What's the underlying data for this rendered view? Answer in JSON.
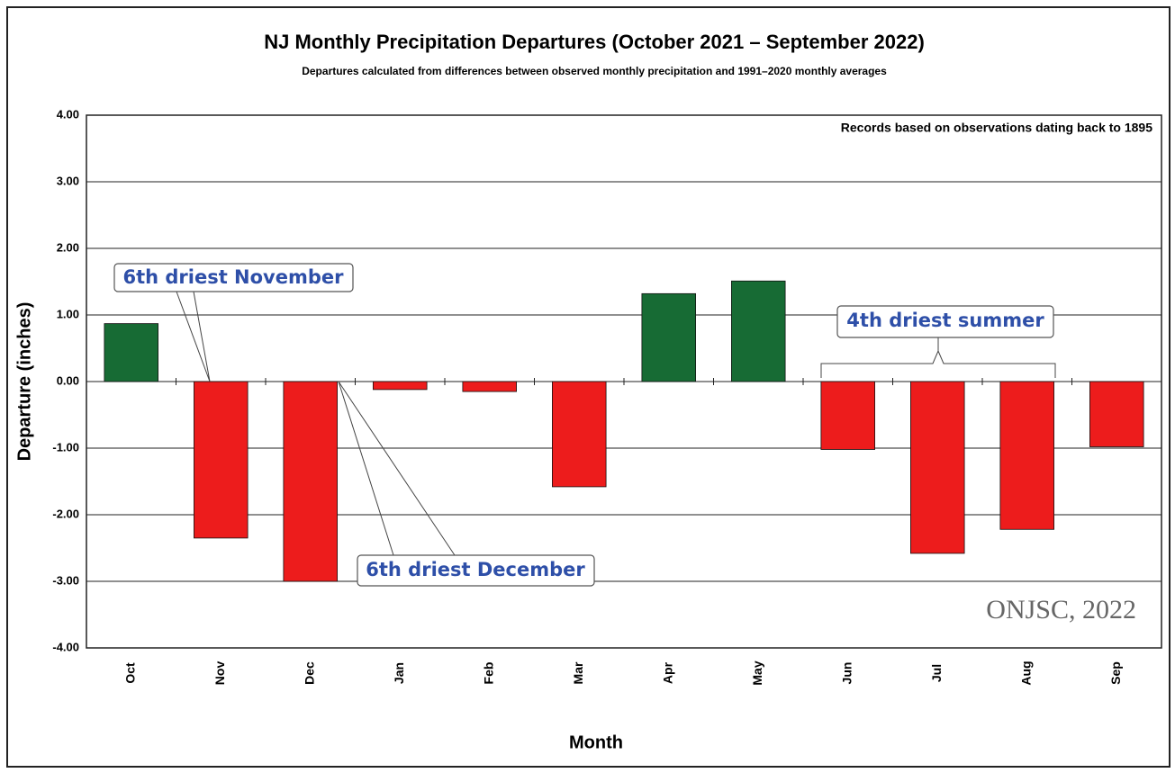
{
  "chart_data": {
    "type": "bar",
    "title": "NJ Monthly Precipitation Departures (October 2021 – September 2022)",
    "subtitle": "Departures calculated from differences between observed monthly precipitation and 1991–2020 monthly  averages",
    "x_label": "Month",
    "y_label": "Departure (inches)",
    "categories": [
      "Oct",
      "Nov",
      "Dec",
      "Jan",
      "Feb",
      "Mar",
      "Apr",
      "May",
      "Jun",
      "Jul",
      "Aug",
      "Sep"
    ],
    "values": [
      0.87,
      -2.35,
      -3.0,
      -0.12,
      -0.15,
      -1.58,
      1.32,
      1.51,
      -1.02,
      -2.58,
      -2.22,
      -0.98
    ],
    "colors": [
      "#176b34",
      "#ed1c1c",
      "#ed1c1c",
      "#ed1c1c",
      "#ed1c1c",
      "#ed1c1c",
      "#176b34",
      "#176b34",
      "#ed1c1c",
      "#ed1c1c",
      "#ed1c1c",
      "#ed1c1c"
    ],
    "ylim": [
      -4,
      4
    ],
    "yticks": [
      {
        "value": -4,
        "label": "-4.00"
      },
      {
        "value": -3,
        "label": "-3.00"
      },
      {
        "value": -2,
        "label": "-2.00"
      },
      {
        "value": -1,
        "label": "-1.00"
      },
      {
        "value": 0,
        "label": "0.00"
      },
      {
        "value": 1,
        "label": "1.00"
      },
      {
        "value": 2,
        "label": "2.00"
      },
      {
        "value": 3,
        "label": "3.00"
      },
      {
        "value": 4,
        "label": "4.00"
      }
    ],
    "grid": true,
    "annotations": [
      "Records based on observations dating back to 1895",
      "6th driest November",
      "6th driest December",
      "4th driest summer",
      "ONJSC, 2022"
    ]
  }
}
